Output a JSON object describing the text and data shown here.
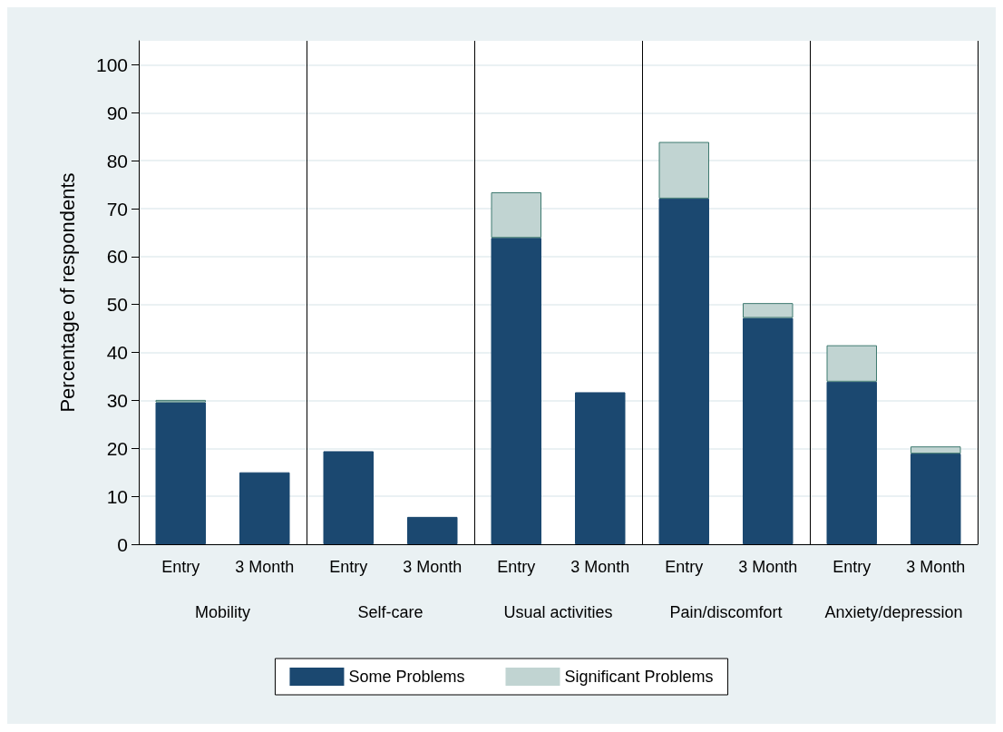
{
  "chart_data": {
    "type": "bar",
    "stacked": true,
    "ylabel": "Percentage of respondents",
    "categories": [
      "Entry",
      "3 Month",
      "Entry",
      "3 Month",
      "Entry",
      "3 Month",
      "Entry",
      "3 Month",
      "Entry",
      "3 Month"
    ],
    "annotations": [
      "Mobility",
      "Self-care",
      "Usual activities",
      "Pain/discomfort",
      "Anxiety/depression"
    ],
    "series": [
      {
        "name": "Some Problems",
        "color": "#1b4870",
        "values": [
          29.6,
          15,
          19.4,
          5.7,
          63.9,
          31.7,
          72.1,
          47.2,
          33.9,
          18.9
        ]
      },
      {
        "name": "Significant Problems",
        "color": "#c1d4d2",
        "values": [
          0.5,
          null,
          null,
          null,
          9.5,
          null,
          11.8,
          3.1,
          7.6,
          1.5
        ]
      }
    ],
    "ylim": [
      0,
      105
    ],
    "yticks": [
      0,
      10,
      20,
      30,
      40,
      50,
      60,
      70,
      80,
      90,
      100
    ],
    "grid": true,
    "legend": "bottom"
  }
}
